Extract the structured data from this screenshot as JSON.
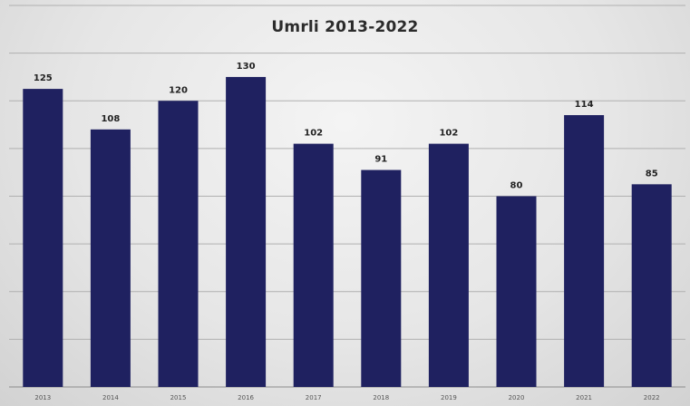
{
  "chart_data": {
    "type": "bar",
    "title": "Umrli 2013-2022",
    "categories": [
      "2013",
      "2014",
      "2015",
      "2016",
      "2017",
      "2018",
      "2019",
      "2020",
      "2021",
      "2022"
    ],
    "values": [
      125,
      108,
      120,
      130,
      102,
      91,
      102,
      80,
      114,
      85
    ],
    "xlabel": "",
    "ylabel": "",
    "ylim": [
      0,
      160
    ],
    "grid": true,
    "legend": "none",
    "colors": {
      "bar": "#1f2160",
      "grid": "#b0b0b0",
      "background": "#e6e6e6"
    }
  }
}
